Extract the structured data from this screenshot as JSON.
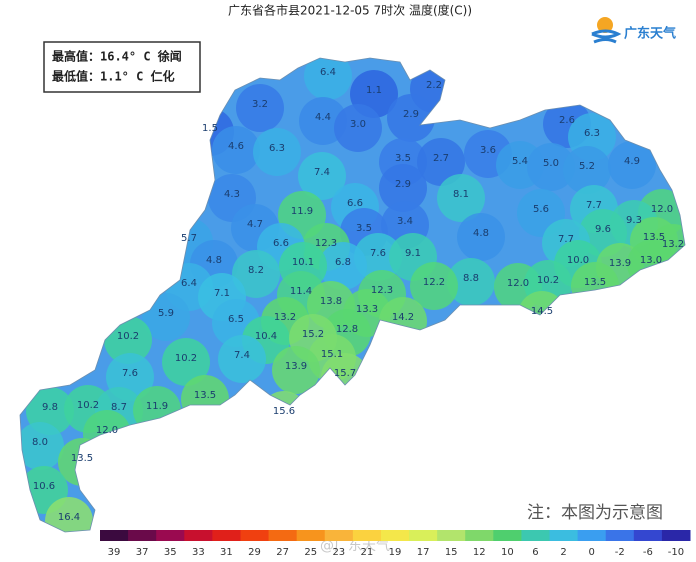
{
  "header": {
    "title": "广东省各市县2021-12-05 7时次 温度(度(C))",
    "brand": "广东天气"
  },
  "stats": {
    "max": "最高值：16.4° C 徐闻",
    "min": "最低值：1.1° C 仁化"
  },
  "map_labels": [
    "6.4",
    "1.1",
    "2.2",
    "3.2",
    "4.4",
    "3.0",
    "2.9",
    "1.5",
    "2.6",
    "6.3",
    "4.6",
    "6.3",
    "3.5",
    "2.7",
    "3.6",
    "5.4",
    "5.0",
    "5.2",
    "4.9",
    "7.4",
    "2.9",
    "8.1",
    "4.3",
    "6.6",
    "12.0",
    "11.9",
    "5.6",
    "7.7",
    "9.3",
    "4.7",
    "3.5",
    "3.4",
    "9.6",
    "13.5",
    "13.2",
    "5.7",
    "12.3",
    "6.6",
    "4.8",
    "7.7",
    "7.6",
    "9.1",
    "6.8",
    "10.1",
    "4.8",
    "8.2",
    "10.0",
    "13.9",
    "13.0",
    "8.8",
    "6.4",
    "12.2",
    "12.0",
    "10.2",
    "13.5",
    "7.1",
    "11.4",
    "12.3",
    "13.8",
    "5.9",
    "14.5",
    "13.3",
    "6.5",
    "13.2",
    "14.2",
    "12.8",
    "10.2",
    "10.4",
    "15.2",
    "10.2",
    "7.4",
    "15.1",
    "13.9",
    "7.6",
    "15.7",
    "13.5",
    "15.6",
    "9.8",
    "10.2",
    "8.7",
    "11.9",
    "12.0",
    "8.0",
    "13.5",
    "10.6",
    "16.4"
  ],
  "note": "注：本图为示意图",
  "watermark": "@广东天气",
  "legend": {
    "labels": [
      39,
      37,
      35,
      33,
      31,
      29,
      27,
      25,
      23,
      21,
      19,
      17,
      15,
      12,
      10,
      6,
      2,
      0,
      -2,
      -6,
      -10
    ],
    "colors": [
      "#3b0a3f",
      "#6a0a4a",
      "#9a0a50",
      "#c8102e",
      "#e0201a",
      "#f04010",
      "#f46a12",
      "#f7941d",
      "#f9b43a",
      "#fbd23f",
      "#f4e74a",
      "#d9ef5a",
      "#b2e46c",
      "#7fd86a",
      "#4fcf6e",
      "#3cc8b0",
      "#3bbde0",
      "#3a9ef0",
      "#3a74e8",
      "#3447d0",
      "#2a27a8"
    ]
  }
}
